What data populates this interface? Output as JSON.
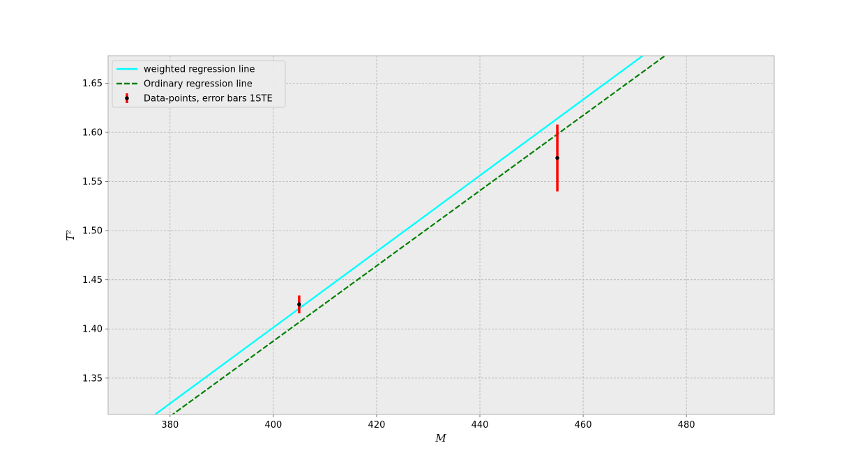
{
  "chart_data": {
    "type": "line",
    "xlabel": "M",
    "ylabel": "T²",
    "xlim": [
      368,
      497
    ],
    "ylim": [
      1.313,
      1.678
    ],
    "x_ticks": [
      380,
      400,
      420,
      440,
      460,
      480
    ],
    "y_ticks": [
      1.35,
      1.4,
      1.45,
      1.5,
      1.55,
      1.6,
      1.65
    ],
    "grid": true,
    "legend_position": "top-left",
    "series": [
      {
        "name": "weighted regression line",
        "kind": "line",
        "style": "solid",
        "color": "#00ffff",
        "x": [
          368,
          497
        ],
        "y": [
          1.2778,
          1.7764
        ]
      },
      {
        "name": "Ordinary regression line",
        "kind": "line",
        "style": "dashed",
        "color": "#008000",
        "x": [
          368,
          497
        ],
        "y": [
          1.2652,
          1.7589
        ]
      },
      {
        "name": "Data-points, error bars 1STE",
        "kind": "errorbar",
        "color": "#ff0000",
        "marker_color": "#000000",
        "points": [
          {
            "x": 405,
            "y": 1.425,
            "yerr": 0.009
          },
          {
            "x": 455,
            "y": 1.574,
            "yerr": 0.034
          }
        ]
      }
    ]
  }
}
